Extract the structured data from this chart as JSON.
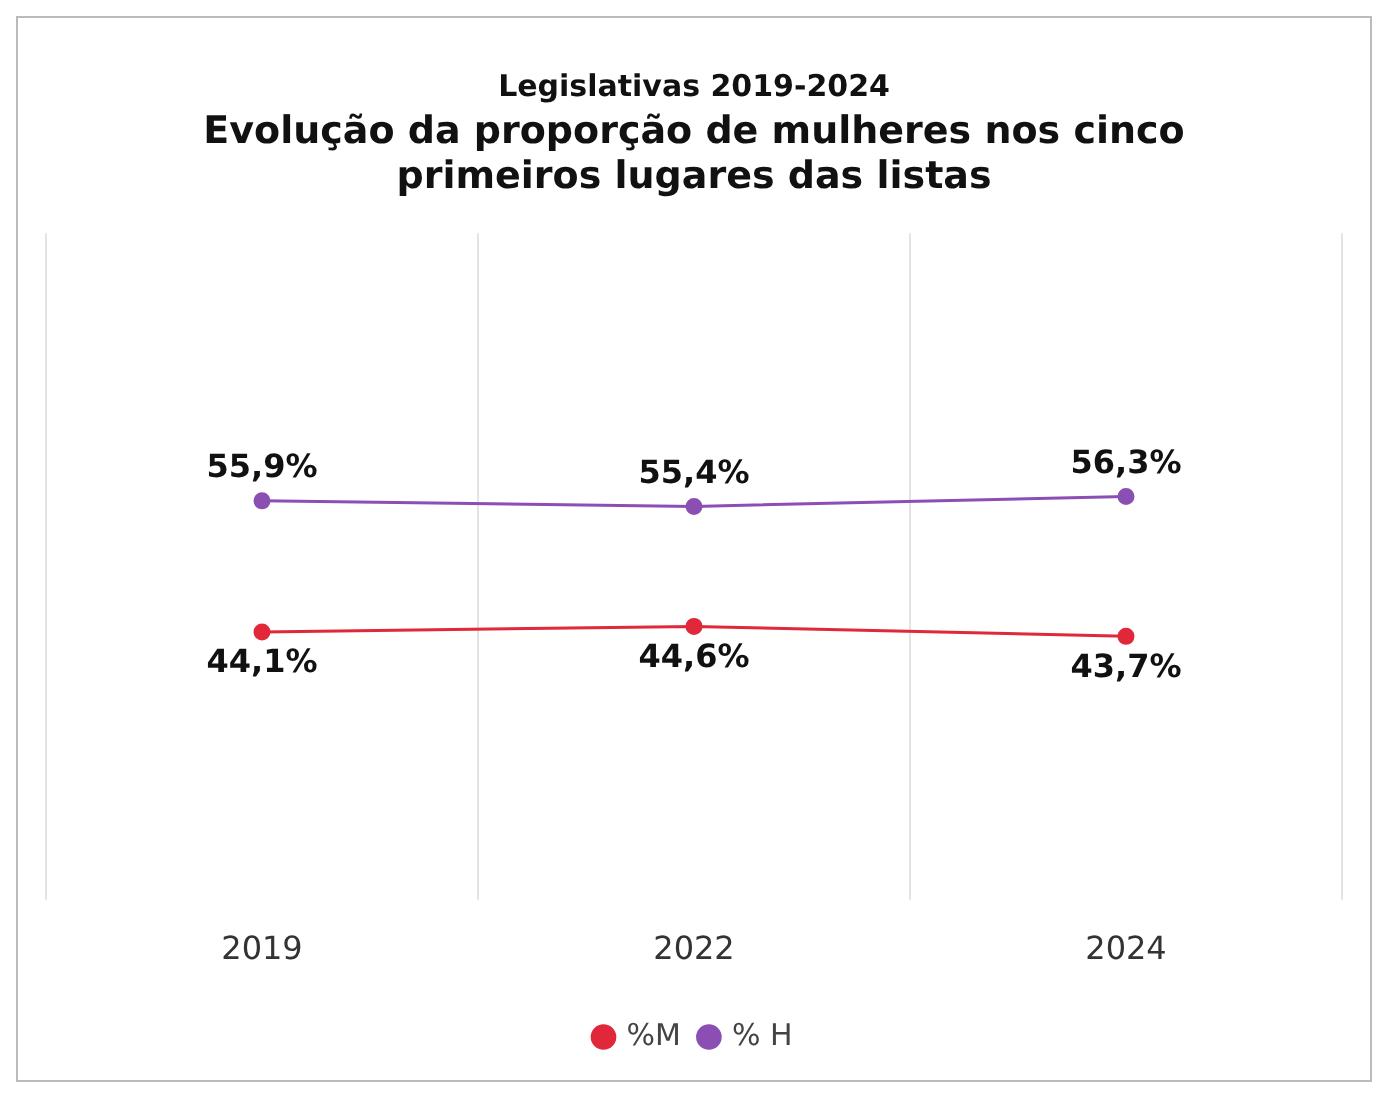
{
  "chart_data": {
    "type": "line",
    "title": "Legislativas 2019-2024",
    "subtitle": "Evolução da proporção de mulheres nos cinco primeiros lugares das listas",
    "categories": [
      "2019",
      "2022",
      "2024"
    ],
    "series": [
      {
        "name": "%M",
        "color": "#e0283a",
        "values": [
          44.1,
          44.6,
          43.7
        ],
        "value_labels": [
          "44,1%",
          "44,6%",
          "43,7%"
        ]
      },
      {
        "name": "% H",
        "color": "#8b4fb3",
        "values": [
          55.9,
          55.4,
          56.3
        ],
        "value_labels": [
          "55,9%",
          "55,4%",
          "56,3%"
        ]
      }
    ],
    "tick_labels": "x",
    "grid": "x",
    "legend": "bottom",
    "marker": "circle",
    "line_style": "solid"
  }
}
